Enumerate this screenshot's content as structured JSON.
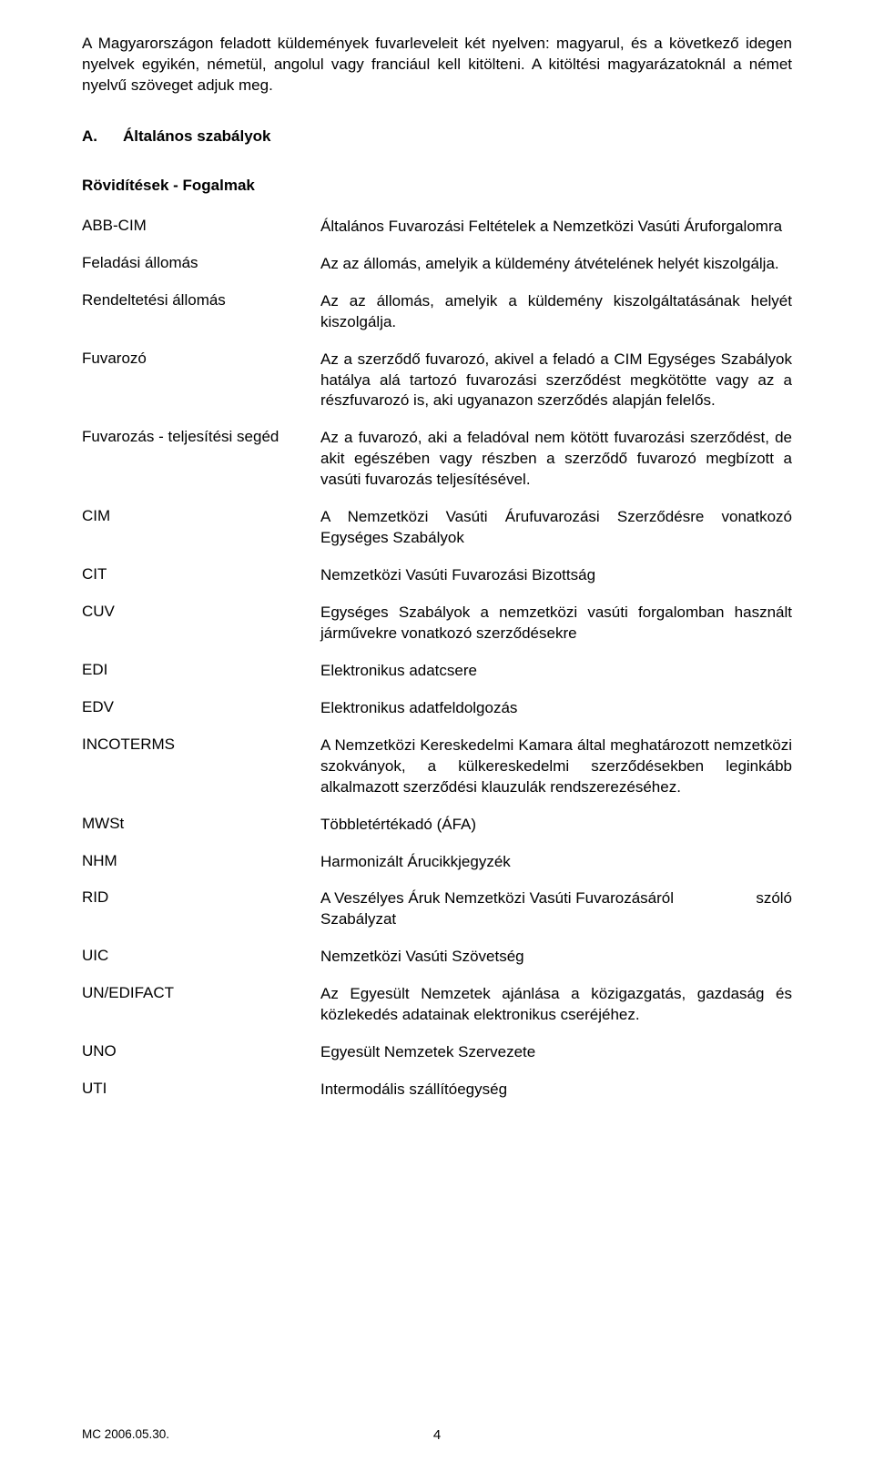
{
  "intro": "A Magyarországon feladott küldemények fuvarleveleit két nyelven: magyarul, és a következő idegen nyelvek egyikén, németül, angolul vagy franciául kell kitölteni. A kitöltési magyarázatoknál a német nyelvű szöveget adjuk meg.",
  "section": {
    "literal": "A.",
    "title": "Általános szabályok"
  },
  "subheading": "Rövidítések - Fogalmak",
  "definitions": [
    {
      "term": "ABB-CIM",
      "desc": "Általános Fuvarozási Feltételek a Nemzetközi Vasúti Áruforgalomra"
    },
    {
      "term": "Feladási állomás",
      "desc": "Az az állomás, amelyik a küldemény átvételének helyét kiszolgálja."
    },
    {
      "term": "Rendeltetési állomás",
      "desc": "Az az állomás, amelyik a küldemény kiszolgáltatásának helyét kiszolgálja."
    },
    {
      "term": "Fuvarozó",
      "desc": "Az a szerződő fuvarozó, akivel a feladó a CIM Egységes Szabályok hatálya alá tartozó fuvarozási szerződést megkötötte vagy az a részfuvarozó is, aki ugyanazon szerződés alapján felelős."
    },
    {
      "term": "Fuvarozás - teljesítési segéd",
      "desc": "Az a fuvarozó, aki a feladóval nem kötött fuvarozási szerződést, de akit egészében vagy részben  a szerződő fuvarozó megbízott a vasúti fuvarozás teljesítésével."
    },
    {
      "term": "CIM",
      "desc": "A Nemzetközi Vasúti Árufuvarozási Szerződésre vonatkozó Egységes Szabályok"
    },
    {
      "term": "CIT",
      "desc": "Nemzetközi Vasúti Fuvarozási Bizottság"
    },
    {
      "term": "CUV",
      "desc": "Egységes Szabályok a nemzetközi vasúti forgalomban használt járművekre vonatkozó szerződésekre"
    },
    {
      "term": "EDI",
      "desc": "Elektronikus adatcsere"
    },
    {
      "term": "EDV",
      "desc": "Elektronikus adatfeldolgozás"
    },
    {
      "term": "INCOTERMS",
      "desc": "A Nemzetközi Kereskedelmi Kamara által meghatározott nemzetközi szokványok, a külkereskedelmi szerződésekben leginkább alkalmazott szerződési klauzulák rendszerezéséhez."
    },
    {
      "term": "MWSt",
      "desc": "Többletértékadó (ÁFA)"
    },
    {
      "term": "NHM",
      "desc": "Harmonizált Árucikkjegyzék"
    },
    {
      "term": "RID",
      "desc_left": "A Veszélyes Áruk Nemzetközi Vasúti Fuvarozásáról",
      "desc_right": "szóló",
      "desc_line2": "Szabályzat"
    },
    {
      "term": "UIC",
      "desc": "Nemzetközi Vasúti Szövetség"
    },
    {
      "term": "UN/EDIFACT",
      "desc": "Az Egyesült Nemzetek ajánlása a közigazgatás, gazdaság és közlekedés adatainak elektronikus cseréjéhez."
    },
    {
      "term": "UNO",
      "desc": "Egyesült Nemzetek Szervezete"
    },
    {
      "term": "UTI",
      "desc": "Intermodális szállítóegység"
    }
  ],
  "footer": {
    "left": "MC 2006.05.30.",
    "page": "4"
  }
}
